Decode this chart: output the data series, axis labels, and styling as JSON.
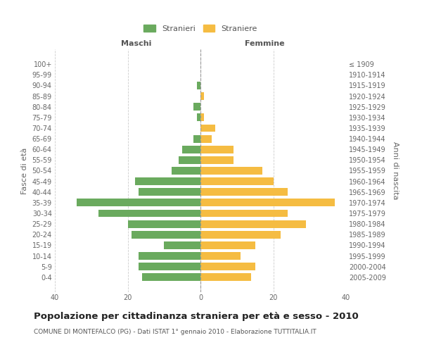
{
  "age_groups": [
    "100+",
    "95-99",
    "90-94",
    "85-89",
    "80-84",
    "75-79",
    "70-74",
    "65-69",
    "60-64",
    "55-59",
    "50-54",
    "45-49",
    "40-44",
    "35-39",
    "30-34",
    "25-29",
    "20-24",
    "15-19",
    "10-14",
    "5-9",
    "0-4"
  ],
  "birth_years": [
    "≤ 1909",
    "1910-1914",
    "1915-1919",
    "1920-1924",
    "1925-1929",
    "1930-1934",
    "1935-1939",
    "1940-1944",
    "1945-1949",
    "1950-1954",
    "1955-1959",
    "1960-1964",
    "1965-1969",
    "1970-1974",
    "1975-1979",
    "1980-1984",
    "1985-1989",
    "1990-1994",
    "1995-1999",
    "2000-2004",
    "2005-2009"
  ],
  "maschi": [
    0,
    0,
    1,
    0,
    2,
    1,
    0,
    2,
    5,
    6,
    8,
    18,
    17,
    34,
    28,
    20,
    19,
    10,
    17,
    17,
    16
  ],
  "femmine": [
    0,
    0,
    0,
    1,
    0,
    1,
    4,
    3,
    9,
    9,
    17,
    20,
    24,
    37,
    24,
    29,
    22,
    15,
    11,
    15,
    14
  ],
  "maschi_color": "#6aaa5e",
  "femmine_color": "#f5bc42",
  "background_color": "#ffffff",
  "grid_color": "#cccccc",
  "title": "Popolazione per cittadinanza straniera per età e sesso - 2010",
  "subtitle": "COMUNE DI MONTEFALCO (PG) - Dati ISTAT 1° gennaio 2010 - Elaborazione TUTTITALIA.IT",
  "xlabel_left": "Maschi",
  "xlabel_right": "Femmine",
  "ylabel_left": "Fasce di età",
  "ylabel_right": "Anni di nascita",
  "legend_maschi": "Stranieri",
  "legend_femmine": "Straniere",
  "xlim": 40,
  "title_fontsize": 9.5,
  "subtitle_fontsize": 6.5,
  "tick_fontsize": 7,
  "label_fontsize": 8
}
